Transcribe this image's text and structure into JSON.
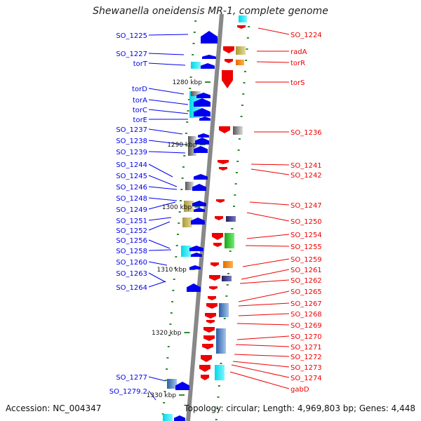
{
  "title": "Shewanella oneidensis MR-1, complete genome",
  "footer": {
    "accession": "Accession: NC_004347",
    "topology": "Topology: circular; Length: 4,969,803 bp; Genes: 4,448"
  },
  "colors": {
    "forward_strand": "#0000ee",
    "reverse_strand": "#ee0000",
    "backbone": "#888888",
    "tick": "#2e8b2e"
  },
  "kbp_marks": [
    "1280 kbp",
    "1290 kbp",
    "1300 kbp",
    "1310 kbp",
    "1320 kbp",
    "1330 kbp"
  ],
  "left_genes": [
    "SO_1225",
    "SO_1227",
    "torT",
    "torD",
    "torA",
    "torC",
    "torE",
    "SO_1237",
    "SO_1238",
    "SO_1239",
    "SO_1244",
    "SO_1245",
    "SO_1246",
    "SO_1248",
    "SO_1249",
    "SO_1251",
    "SO_1252",
    "SO_1256",
    "SO_1258",
    "SO_1260",
    "SO_1263",
    "SO_1264",
    "SO_1277",
    "SO_1279.2"
  ],
  "right_genes": [
    "SO_1224",
    "radA",
    "torR",
    "torS",
    "SO_1236",
    "SO_1241",
    "SO_1242",
    "SO_1247",
    "SO_1250",
    "SO_1254",
    "SO_1255",
    "SO_1259",
    "SO_1261",
    "SO_1262",
    "SO_1265",
    "SO_1267",
    "SO_1268",
    "SO_1269",
    "SO_1270",
    "SO_1271",
    "SO_1272",
    "SO_1273",
    "SO_1274",
    "gabD"
  ]
}
